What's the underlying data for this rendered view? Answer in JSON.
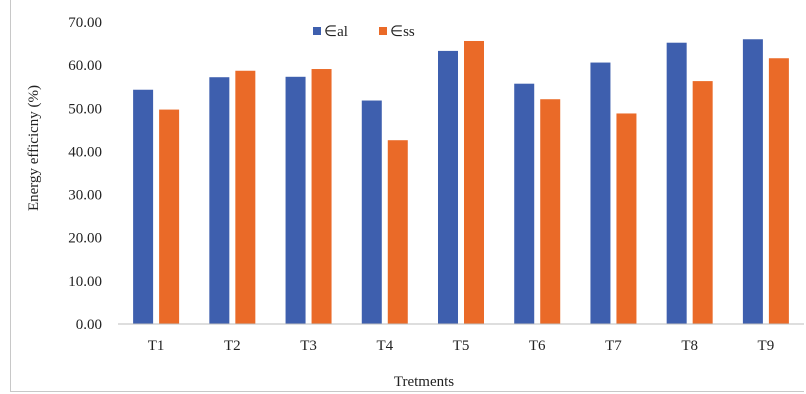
{
  "chart_data": {
    "type": "bar",
    "title": "",
    "xlabel": "Tretments",
    "ylabel": "Energy efficicny (%)",
    "ylim": [
      0,
      70
    ],
    "yticks": [
      "0.00",
      "10.00",
      "20.00",
      "30.00",
      "40.00",
      "50.00",
      "60.00",
      "70.00"
    ],
    "grid": false,
    "legend_position": "top-center",
    "categories": [
      "T1",
      "T2",
      "T3",
      "T4",
      "T5",
      "T6",
      "T7",
      "T8",
      "T9"
    ],
    "series": [
      {
        "name": "∈al",
        "color": "#3e5fae",
        "values": [
          54.3,
          57.2,
          57.3,
          51.8,
          63.3,
          55.7,
          60.6,
          65.2,
          66.0
        ]
      },
      {
        "name": "∈ss",
        "color": "#ea6a28",
        "values": [
          49.7,
          58.7,
          59.1,
          42.6,
          65.6,
          52.1,
          48.8,
          56.3,
          61.6
        ]
      }
    ]
  }
}
